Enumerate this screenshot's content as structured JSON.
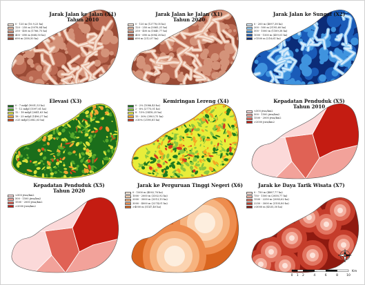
{
  "panels": [
    {
      "id": "p1",
      "title": "Jarak Jalan ke Jalan  (X1)",
      "subtitle": "Tahun 2010",
      "scheme": "brown",
      "legend": [
        "0 - 120 m (10.9,23 ha)",
        "120 - 250 m (3076,84 ha)",
        "250 - 400 m (1766,75 ha)",
        "400 - 690 m (668,50 ha)",
        "690 m (358,50 ha)"
      ],
      "colors": [
        "#f7e4d8",
        "#e8b9a2",
        "#d4937a",
        "#bb6a53",
        "#9a4a35"
      ]
    },
    {
      "id": "p2",
      "title": "Jarak Jalan ke Jalan  (X1)",
      "subtitle": "Tahun 2020",
      "scheme": "brown",
      "legend": [
        "0 - 120 m (12778,05 ha)",
        "120 - 250 m (3065,21 ha)",
        "250 - 400 m (1640,77 ha)",
        "400 - 690 m (694,28 ha)",
        "690 m (212,07 ha)"
      ],
      "colors": [
        "#f7e4d8",
        "#e8b9a2",
        "#d4937a",
        "#bb6a53",
        "#9a4a35"
      ]
    },
    {
      "id": "p3",
      "title": "Jarak Jalan ke Sungai  (X2)",
      "subtitle": "",
      "scheme": "blue",
      "legend": [
        "0 - 200 m (4097,38 ha)",
        "200 - 500 m (3195,60 ha)",
        "500 - 1000 m (1189,38 ha)",
        "1000 - 1500 m (459,01 ha)",
        ">1500 m (216,61 ha)"
      ],
      "colors": [
        "#d8ecfb",
        "#8cc7f2",
        "#3f93de",
        "#1a5bb8",
        "#0b2c78"
      ]
    },
    {
      "id": "p4",
      "title": "Elevasi  (X3)",
      "subtitle": "",
      "scheme": "green",
      "legend": [
        "0 - 7 mdpl (9001,53 ha)",
        "7 - 12 mdpl (1097,61 ha)",
        "12 - 18 mdpl (2641,63 ha)",
        "18 - 25 mdpl (1496,27 ha)",
        ">25 mdpl (2082,03 ha)"
      ],
      "colors": [
        "#1b6e1b",
        "#57a82b",
        "#d9e23a",
        "#f2a531",
        "#d64a1c"
      ]
    },
    {
      "id": "p5",
      "title": "Kemiringan Lereng  (X4)",
      "subtitle": "",
      "scheme": "yellowgreen",
      "legend": [
        "0 - 2% (1086,43 ha)",
        "2 - 8% (2775,01 ha)",
        "8 - 15% (5418,25 ha)",
        "15 - 30% (3903,75 ha)",
        ">30% (2198,81 ha)"
      ],
      "colors": [
        "#1f7a1f",
        "#8cc63f",
        "#e8ed3a",
        "#f5a623",
        "#d63b1f"
      ]
    },
    {
      "id": "p6",
      "title": "Kepadatan Penduduk  (X5)",
      "subtitle": "Tahun 2010",
      "scheme": "red",
      "legend": [
        "<500 jiwa/km2",
        "500 - 1500 jiwa/km2",
        "1500 - 2000 jiwa/km2",
        ">2000 jiwa/km2"
      ],
      "colors": [
        "#fbd9d9",
        "#f2a29a",
        "#e06255",
        "#c41c12"
      ]
    },
    {
      "id": "p7",
      "title": "Kepadatan Penduduk  (X5)",
      "subtitle": "Tahun 2020",
      "scheme": "red",
      "legend": [
        "<500 jiwa/km2",
        "500 - 1500 jiwa/km2",
        "1500 - 2000 jiwa/km2",
        ">2000 jiwa/km2"
      ],
      "colors": [
        "#fbd9d9",
        "#f2a29a",
        "#e06255",
        "#c41c12"
      ]
    },
    {
      "id": "p8",
      "title": "Jarak ke Perguruan Tinggi Negeri  (X6)",
      "subtitle": "",
      "scheme": "peach",
      "legend": [
        "0 - 1000 m (4002,76 ha)",
        "1000 - 2000 m (3302,92 ha)",
        "2000 - 3000 m (3313,15 ha)",
        "3000 - 4000 m (2274,01 ha)",
        ">4000 m (5147,40 ha)"
      ],
      "colors": [
        "#fdeede",
        "#fbd3b0",
        "#f6b37f",
        "#ee8c4d",
        "#d9651f"
      ]
    },
    {
      "id": "p9",
      "title": "Jarak ke Daya Tarik Wisata  (X7)",
      "subtitle": "",
      "scheme": "rings",
      "legend": [
        "0 - 750 m (4887,77 ha)",
        "750 - 1500 m (2058,77 ha)",
        "1500 - 2250 m (2083,62 ha)",
        "2250 - 3000 m (3105,80 ha)",
        ">3000 m (4535,30 ha)"
      ],
      "colors": [
        "#fde3da",
        "#f4b0a0",
        "#e27561",
        "#c53d2b",
        "#8f1a10"
      ]
    }
  ],
  "north_label": "U",
  "scale": {
    "ticks": [
      "0",
      "1",
      "2",
      "4",
      "6",
      "8",
      "10"
    ],
    "unit": "Km"
  }
}
